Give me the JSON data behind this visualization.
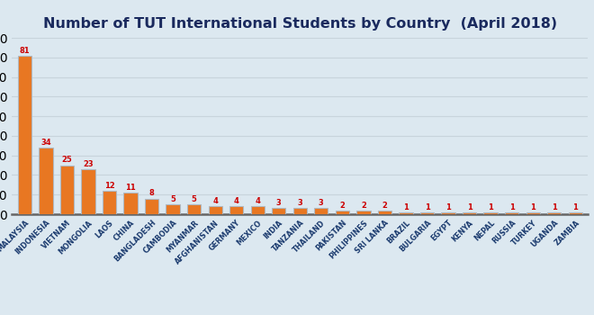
{
  "title": "Number of TUT International Students by Country  (April 2018)",
  "categories": [
    "MALAYSIA",
    "INDONESIA",
    "VIETNAM",
    "MONGOLIA",
    "LAOS",
    "CHINA",
    "BANGLADESH",
    "CAMBODIA",
    "MYANMAR",
    "AFGHANISTAN",
    "GERMANY",
    "MEXICO",
    "INDIA",
    "TANZANIA",
    "THAILAND",
    "PAKISTAN",
    "PHILIPPINES",
    "SRI LANKA",
    "BRAZIL",
    "BULGARIA",
    "EGYPT",
    "KENYA",
    "NEPAL",
    "RUSSIA",
    "TURKEY",
    "UGANDA",
    "ZAMBIA"
  ],
  "values": [
    81,
    34,
    25,
    23,
    12,
    11,
    8,
    5,
    5,
    4,
    4,
    4,
    3,
    3,
    3,
    2,
    2,
    2,
    1,
    1,
    1,
    1,
    1,
    1,
    1,
    1,
    1
  ],
  "bar_color": "#E87722",
  "bar_edge_color": "#b0b8c0",
  "label_color": "#cc0000",
  "background_color": "#dce8f0",
  "title_color": "#1a2a5e",
  "tick_label_color": "#1a3a6e",
  "grid_color": "#c8d4dc",
  "ylim": [
    0,
    90
  ],
  "grid_interval": 10,
  "title_fontsize": 11.5,
  "label_fontsize": 5.8,
  "value_fontsize": 6.0,
  "bar_width": 0.65
}
